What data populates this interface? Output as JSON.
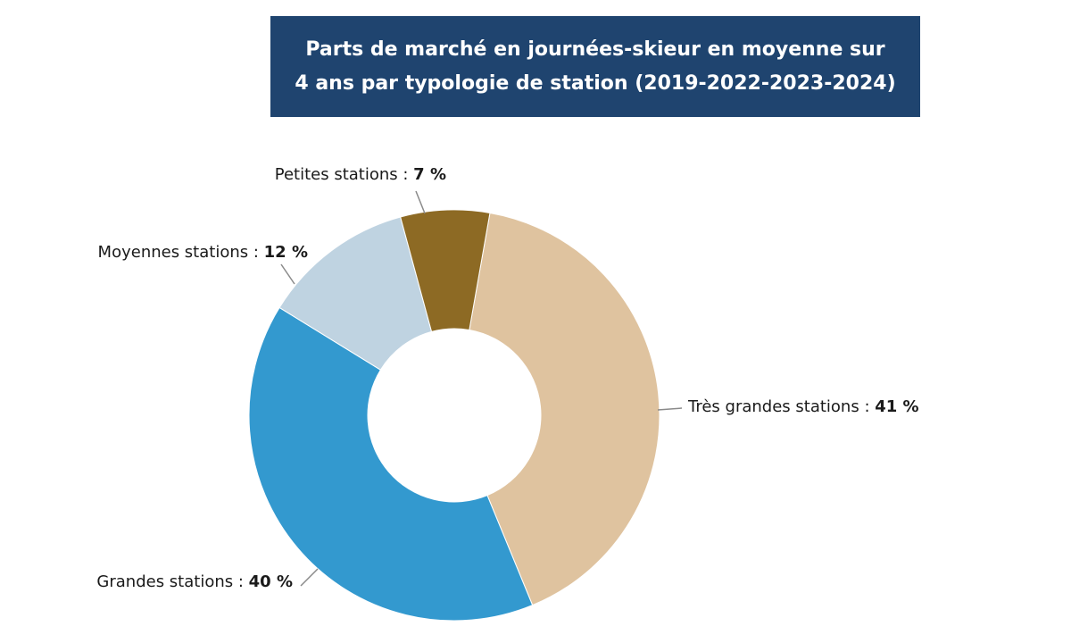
{
  "chart_data": {
    "type": "pie",
    "title_lines": [
      "Parts de marché en journées-skieur  en moyenne sur",
      "4 ans par typologie de station (2019-2022-2023-2024)"
    ],
    "slices": [
      {
        "label": "Très grandes stations : ",
        "value_label": "41 %",
        "value": 41,
        "color": "#dfc39f"
      },
      {
        "label": "Grandes stations : ",
        "value_label": "40 %",
        "value": 40,
        "color": "#3399cf"
      },
      {
        "label": "Moyennes stations : ",
        "value_label": "12 %",
        "value": 12,
        "color": "#bfd3e1"
      },
      {
        "label": "Petites stations : ",
        "value_label": "7 %",
        "value": 7,
        "color": "#8d6a24"
      }
    ],
    "legend": "none"
  }
}
